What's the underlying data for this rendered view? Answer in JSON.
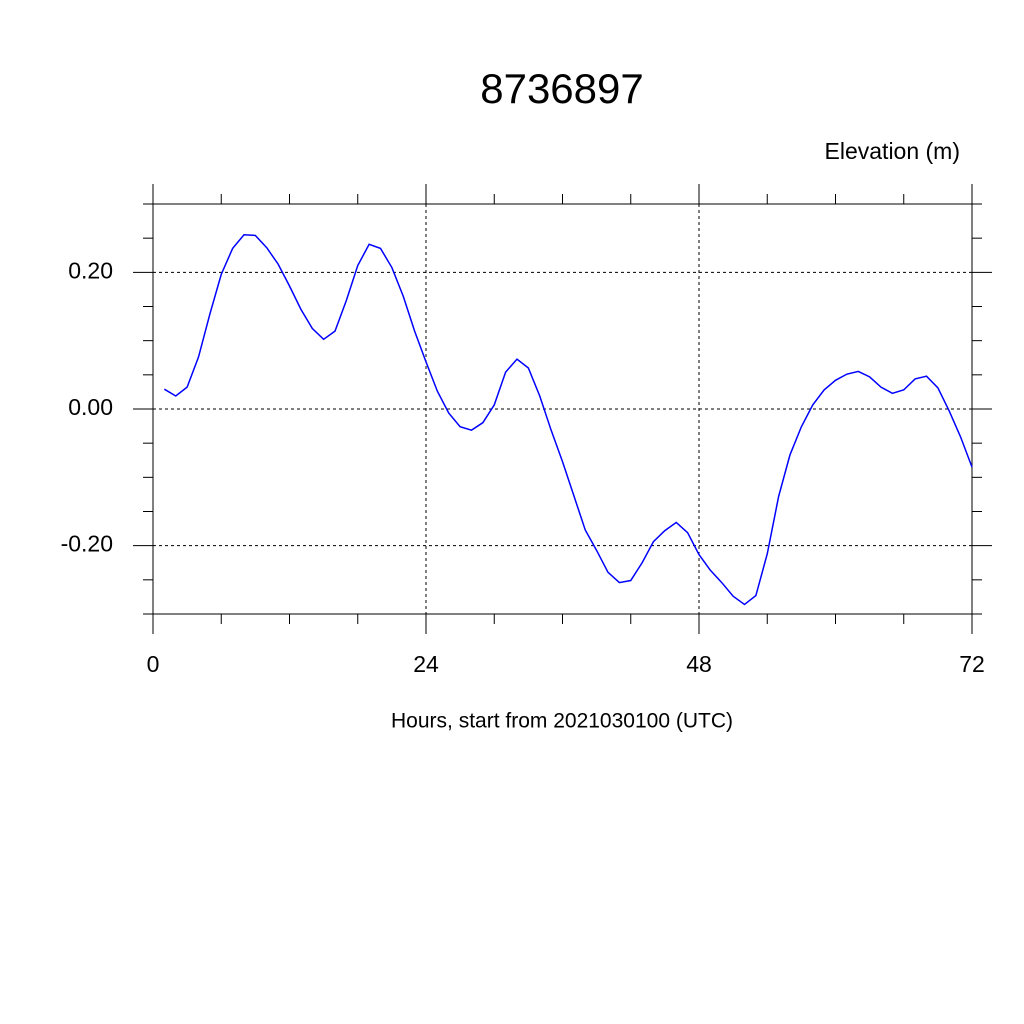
{
  "chart_data": {
    "type": "line",
    "title": "8736897",
    "ylabel": "Elevation (m)",
    "xlabel": "Hours, start from 2021030100 (UTC)",
    "x": [
      1,
      2,
      3,
      4,
      5,
      6,
      7,
      8,
      9,
      10,
      11,
      12,
      13,
      14,
      15,
      16,
      17,
      18,
      19,
      20,
      21,
      22,
      23,
      24,
      25,
      26,
      27,
      28,
      29,
      30,
      31,
      32,
      33,
      34,
      35,
      36,
      37,
      38,
      39,
      40,
      41,
      42,
      43,
      44,
      45,
      46,
      47,
      48,
      49,
      50,
      51,
      52,
      53,
      54,
      55,
      56,
      57,
      58,
      59,
      60,
      61,
      62,
      63,
      64,
      65,
      66,
      67,
      68,
      69,
      70,
      71,
      72
    ],
    "series": [
      {
        "name": "Elevation",
        "color": "#0000ff",
        "values": [
          0.029,
          0.019,
          0.032,
          0.076,
          0.139,
          0.197,
          0.235,
          0.255,
          0.254,
          0.236,
          0.212,
          0.18,
          0.146,
          0.118,
          0.102,
          0.114,
          0.159,
          0.21,
          0.241,
          0.235,
          0.207,
          0.165,
          0.114,
          0.069,
          0.026,
          -0.006,
          -0.026,
          -0.031,
          -0.02,
          0.006,
          0.054,
          0.073,
          0.06,
          0.019,
          -0.031,
          -0.077,
          -0.127,
          -0.177,
          -0.207,
          -0.239,
          -0.254,
          -0.251,
          -0.225,
          -0.194,
          -0.178,
          -0.166,
          -0.181,
          -0.213,
          -0.236,
          -0.254,
          -0.274,
          -0.286,
          -0.273,
          -0.212,
          -0.128,
          -0.067,
          -0.026,
          0.006,
          0.028,
          0.042,
          0.051,
          0.055,
          0.047,
          0.032,
          0.023,
          0.028,
          0.044,
          0.048,
          0.031,
          -0.003,
          -0.041,
          -0.085
        ]
      }
    ],
    "xlim": [
      0,
      72
    ],
    "xticks": [
      0,
      24,
      48,
      72
    ],
    "xminorticks": [
      6,
      12,
      18,
      30,
      36,
      42,
      54,
      60,
      66
    ],
    "ylim": [
      -0.3,
      0.3
    ],
    "yticks": [
      {
        "value": -0.2,
        "label": "-0.20"
      },
      {
        "value": 0,
        "label": "0.00"
      },
      {
        "value": 0.2,
        "label": "0.20"
      }
    ],
    "yminorticks": [
      -0.3,
      -0.25,
      -0.15,
      -0.1,
      -0.05,
      0.05,
      0.1,
      0.15,
      0.25,
      0.3
    ],
    "grid": true
  }
}
